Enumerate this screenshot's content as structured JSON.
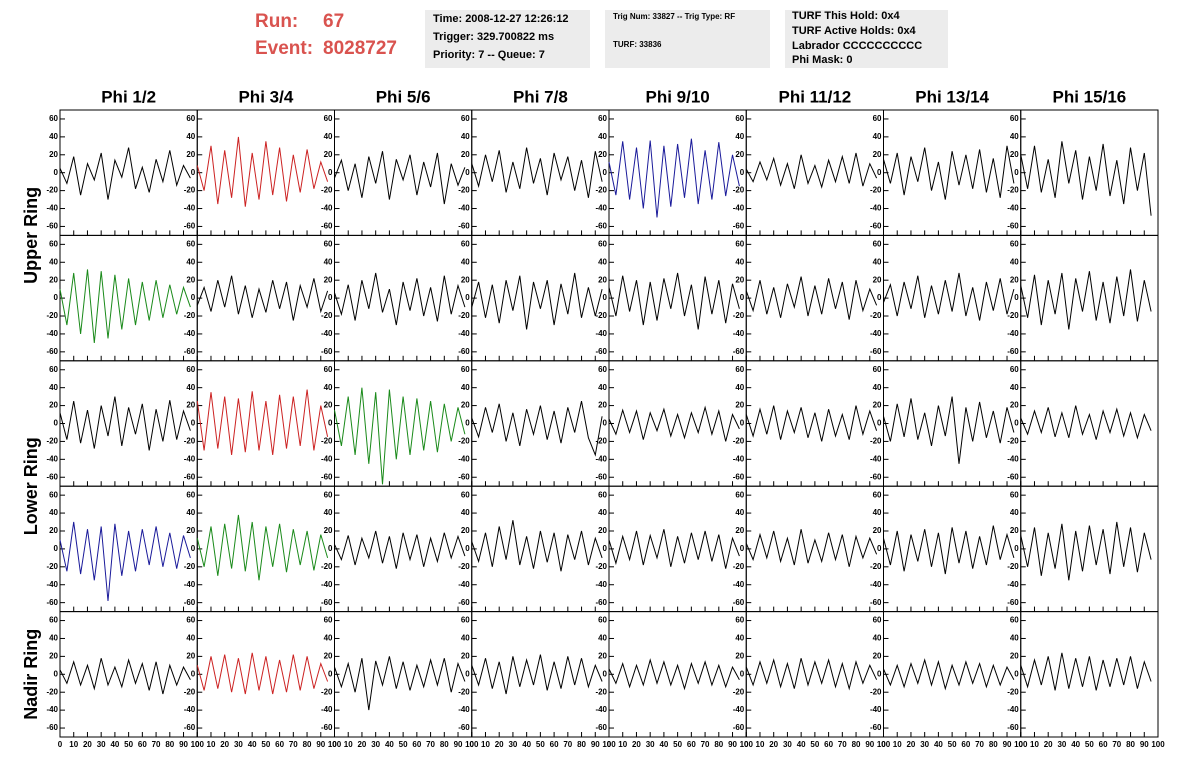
{
  "header": {
    "run_label": "Run:",
    "run": "67",
    "event_label": "Event:",
    "event": "8028727",
    "box1": [
      "Time: 2008-12-27 12:26:12",
      "Trigger: 329.700822 ms",
      "Priority: 7 -- Queue: 7"
    ],
    "box2": [
      "Trig Num: 33827 -- Trig Type: RF",
      "TURF: 33836"
    ],
    "box3": [
      "TURF This Hold: 0x4",
      "TURF Active Holds: 0x4",
      "Labrador CCCCCCCCCC",
      "Phi Mask: 0"
    ]
  },
  "chart_data": {
    "type": "waveform_grid",
    "columns": [
      "Phi 1/2",
      "Phi 3/4",
      "Phi 5/6",
      "Phi 7/8",
      "Phi 9/10",
      "Phi 11/12",
      "Phi 13/14",
      "Phi 15/16"
    ],
    "rings": [
      "Upper Ring",
      "Lower Ring",
      "Nadir Ring"
    ],
    "x": [
      0,
      5,
      10,
      15,
      20,
      25,
      30,
      35,
      40,
      45,
      50,
      55,
      60,
      65,
      70,
      75,
      80,
      85,
      90,
      95
    ],
    "xlim": [
      0,
      100
    ],
    "xticks": [
      0,
      10,
      20,
      30,
      40,
      50,
      60,
      70,
      80,
      90,
      100
    ],
    "ylim": [
      -70,
      70
    ],
    "yticks": [
      -60,
      -40,
      -20,
      0,
      20,
      40,
      60
    ],
    "panels": [
      [
        {
          "color": "#000000",
          "values": [
            5,
            -12,
            18,
            -25,
            10,
            -8,
            22,
            -30,
            14,
            -5,
            28,
            -18,
            6,
            -22,
            15,
            -10,
            25,
            -14,
            8,
            -6
          ]
        },
        {
          "color": "#cc2222",
          "values": [
            8,
            -20,
            30,
            -35,
            25,
            -28,
            40,
            -38,
            22,
            -30,
            35,
            -25,
            28,
            -32,
            20,
            -22,
            26,
            -18,
            12,
            -10
          ]
        },
        {
          "color": "#000000",
          "values": [
            -6,
            14,
            -20,
            10,
            -28,
            18,
            -12,
            24,
            -30,
            15,
            -8,
            20,
            -25,
            12,
            -16,
            22,
            -35,
            10,
            -14,
            6
          ]
        },
        {
          "color": "#000000",
          "values": [
            10,
            -15,
            20,
            -10,
            25,
            -22,
            12,
            -18,
            28,
            -12,
            16,
            -25,
            22,
            -8,
            18,
            -20,
            14,
            -28,
            24,
            -10
          ]
        },
        {
          "color": "#1a1a9a",
          "values": [
            12,
            -25,
            35,
            -30,
            28,
            -40,
            36,
            -50,
            30,
            -38,
            32,
            -28,
            38,
            -35,
            25,
            -30,
            34,
            -26,
            20,
            -15
          ]
        },
        {
          "color": "#000000",
          "values": [
            4,
            -10,
            12,
            -8,
            16,
            -14,
            10,
            -18,
            20,
            -12,
            8,
            -16,
            14,
            -10,
            18,
            -12,
            22,
            -15,
            10,
            -6
          ]
        },
        {
          "color": "#000000",
          "values": [
            15,
            -12,
            22,
            -25,
            18,
            -10,
            28,
            -20,
            12,
            -30,
            24,
            -14,
            20,
            -18,
            26,
            -22,
            16,
            -28,
            30,
            -12
          ]
        },
        {
          "color": "#000000",
          "values": [
            20,
            -18,
            30,
            -22,
            15,
            -28,
            35,
            -12,
            25,
            -30,
            18,
            -20,
            32,
            -26,
            14,
            -35,
            28,
            -20,
            22,
            -48
          ]
        }
      ],
      [
        {
          "color": "#1a8a1a",
          "values": [
            10,
            -30,
            28,
            -40,
            32,
            -50,
            30,
            -45,
            26,
            -35,
            22,
            -30,
            18,
            -25,
            20,
            -22,
            15,
            -18,
            12,
            -10
          ]
        },
        {
          "color": "#000000",
          "values": [
            -8,
            12,
            -15,
            20,
            -10,
            25,
            -18,
            14,
            -22,
            10,
            -16,
            20,
            -12,
            18,
            -25,
            14,
            -10,
            22,
            -15,
            8
          ]
        },
        {
          "color": "#000000",
          "values": [
            6,
            -18,
            15,
            -25,
            20,
            -12,
            28,
            -16,
            10,
            -30,
            18,
            -14,
            22,
            -20,
            12,
            -26,
            25,
            -18,
            14,
            -10
          ]
        },
        {
          "color": "#000000",
          "values": [
            -10,
            18,
            -22,
            15,
            -28,
            20,
            -14,
            25,
            -35,
            18,
            -12,
            20,
            -30,
            16,
            -18,
            28,
            -22,
            12,
            -20,
            10
          ]
        },
        {
          "color": "#000000",
          "values": [
            12,
            -20,
            25,
            -15,
            20,
            -30,
            18,
            -25,
            22,
            -12,
            28,
            -20,
            15,
            -35,
            24,
            -18,
            20,
            -28,
            16,
            -12
          ]
        },
        {
          "color": "#000000",
          "values": [
            8,
            -14,
            20,
            -18,
            12,
            -22,
            16,
            -10,
            24,
            -20,
            14,
            -18,
            22,
            -12,
            18,
            -24,
            20,
            -14,
            10,
            -8
          ]
        },
        {
          "color": "#000000",
          "values": [
            -5,
            15,
            -20,
            18,
            -12,
            25,
            -22,
            14,
            -18,
            20,
            -15,
            28,
            -20,
            12,
            -25,
            18,
            -14,
            22,
            -18,
            10
          ]
        },
        {
          "color": "#000000",
          "values": [
            14,
            -22,
            26,
            -30,
            20,
            -18,
            28,
            -35,
            22,
            -15,
            30,
            -25,
            18,
            -28,
            24,
            -20,
            32,
            -26,
            20,
            -15
          ]
        }
      ],
      [
        {
          "color": "#000000",
          "values": [
            12,
            -18,
            25,
            -22,
            15,
            -28,
            20,
            -14,
            30,
            -25,
            18,
            -12,
            22,
            -30,
            16,
            -20,
            26,
            -18,
            14,
            -8
          ]
        },
        {
          "color": "#cc2222",
          "values": [
            25,
            -30,
            35,
            -28,
            30,
            -35,
            28,
            -32,
            36,
            -30,
            25,
            -35,
            32,
            -28,
            30,
            -25,
            38,
            -30,
            20,
            -15
          ]
        },
        {
          "color": "#1a8a1a",
          "values": [
            15,
            -25,
            30,
            -35,
            40,
            -45,
            35,
            -68,
            38,
            -40,
            30,
            -35,
            28,
            -30,
            25,
            -32,
            22,
            -20,
            18,
            -12
          ]
        },
        {
          "color": "#000000",
          "values": [
            6,
            -15,
            18,
            -10,
            22,
            -20,
            12,
            -25,
            16,
            -12,
            20,
            -18,
            14,
            -22,
            18,
            -10,
            25,
            -16,
            -35,
            8
          ]
        },
        {
          "color": "#000000",
          "values": [
            5,
            -12,
            15,
            -10,
            14,
            -18,
            12,
            -8,
            16,
            -14,
            10,
            -16,
            12,
            -10,
            18,
            -12,
            14,
            -20,
            10,
            -6
          ]
        },
        {
          "color": "#000000",
          "values": [
            10,
            -14,
            16,
            -12,
            20,
            -18,
            14,
            -10,
            18,
            -16,
            12,
            -20,
            16,
            -14,
            10,
            -18,
            20,
            -12,
            14,
            -8
          ]
        },
        {
          "color": "#000000",
          "values": [
            8,
            -20,
            22,
            -15,
            28,
            -18,
            12,
            -25,
            20,
            -14,
            30,
            -45,
            18,
            -20,
            24,
            -16,
            14,
            -22,
            18,
            -10
          ]
        },
        {
          "color": "#000000",
          "values": [
            6,
            -12,
            14,
            -10,
            18,
            -15,
            12,
            -16,
            20,
            -12,
            10,
            -18,
            14,
            -10,
            16,
            -14,
            12,
            -16,
            10,
            -8
          ]
        }
      ],
      [
        {
          "color": "#1a1a9a",
          "values": [
            10,
            -25,
            30,
            -28,
            22,
            -35,
            25,
            -58,
            28,
            -30,
            20,
            -25,
            22,
            -18,
            25,
            -20,
            18,
            -22,
            15,
            -10
          ]
        },
        {
          "color": "#1a8a1a",
          "values": [
            12,
            -20,
            25,
            -30,
            28,
            -22,
            38,
            -25,
            30,
            -35,
            25,
            -20,
            28,
            -26,
            22,
            -18,
            20,
            -24,
            16,
            -10
          ]
        },
        {
          "color": "#000000",
          "values": [
            5,
            -12,
            15,
            -18,
            12,
            -10,
            20,
            -16,
            14,
            -22,
            18,
            -12,
            16,
            -20,
            12,
            -14,
            18,
            -10,
            14,
            -8
          ]
        },
        {
          "color": "#000000",
          "values": [
            8,
            -14,
            18,
            -20,
            25,
            -12,
            32,
            -18,
            14,
            -22,
            20,
            -15,
            18,
            -25,
            16,
            -12,
            20,
            -18,
            12,
            -10
          ]
        },
        {
          "color": "#000000",
          "values": [
            10,
            -16,
            14,
            -12,
            20,
            -18,
            15,
            -10,
            22,
            -20,
            14,
            -16,
            18,
            -12,
            20,
            -14,
            16,
            -22,
            12,
            -8
          ]
        },
        {
          "color": "#000000",
          "values": [
            6,
            -12,
            16,
            -10,
            20,
            -14,
            12,
            -18,
            22,
            -16,
            10,
            -14,
            18,
            -12,
            16,
            -20,
            14,
            -10,
            12,
            -6
          ]
        },
        {
          "color": "#000000",
          "values": [
            12,
            -18,
            20,
            -25,
            16,
            -14,
            22,
            -20,
            18,
            -28,
            24,
            -16,
            20,
            -22,
            14,
            -18,
            26,
            -12,
            16,
            -10
          ]
        },
        {
          "color": "#000000",
          "values": [
            15,
            -20,
            24,
            -30,
            18,
            -22,
            28,
            -35,
            20,
            -25,
            26,
            -18,
            22,
            -28,
            30,
            -20,
            24,
            -26,
            18,
            -12
          ]
        }
      ],
      [
        {
          "color": "#000000",
          "values": [
            5,
            -10,
            14,
            -12,
            10,
            -16,
            18,
            -12,
            8,
            -14,
            16,
            -10,
            12,
            -18,
            14,
            -22,
            10,
            -12,
            8,
            -6
          ]
        },
        {
          "color": "#cc2222",
          "values": [
            10,
            -18,
            20,
            -16,
            22,
            -20,
            18,
            -22,
            24,
            -18,
            20,
            -22,
            16,
            -20,
            22,
            -18,
            20,
            -16,
            12,
            -8
          ]
        },
        {
          "color": "#000000",
          "values": [
            8,
            -14,
            12,
            -20,
            18,
            -40,
            15,
            -12,
            20,
            -16,
            14,
            -18,
            10,
            -14,
            16,
            -12,
            18,
            -20,
            12,
            -8
          ]
        },
        {
          "color": "#000000",
          "values": [
            10,
            -12,
            18,
            -16,
            14,
            -22,
            20,
            -14,
            16,
            -12,
            22,
            -18,
            14,
            -16,
            20,
            -12,
            18,
            -14,
            10,
            -8
          ]
        },
        {
          "color": "#000000",
          "values": [
            6,
            -10,
            12,
            -14,
            10,
            -12,
            16,
            -10,
            14,
            -12,
            10,
            -16,
            12,
            -10,
            14,
            -12,
            10,
            -14,
            8,
            -6
          ]
        },
        {
          "color": "#000000",
          "values": [
            8,
            -12,
            14,
            -10,
            16,
            -14,
            12,
            -16,
            18,
            -12,
            14,
            -10,
            16,
            -14,
            12,
            -16,
            14,
            -10,
            10,
            -6
          ]
        },
        {
          "color": "#000000",
          "values": [
            6,
            -12,
            10,
            -14,
            12,
            -10,
            16,
            -12,
            14,
            -16,
            10,
            -12,
            14,
            -10,
            12,
            -14,
            10,
            -12,
            8,
            -6
          ]
        },
        {
          "color": "#000000",
          "values": [
            10,
            -14,
            16,
            -12,
            20,
            -18,
            24,
            -16,
            18,
            -14,
            20,
            -18,
            16,
            -14,
            18,
            -12,
            20,
            -16,
            14,
            -8
          ]
        }
      ]
    ]
  }
}
